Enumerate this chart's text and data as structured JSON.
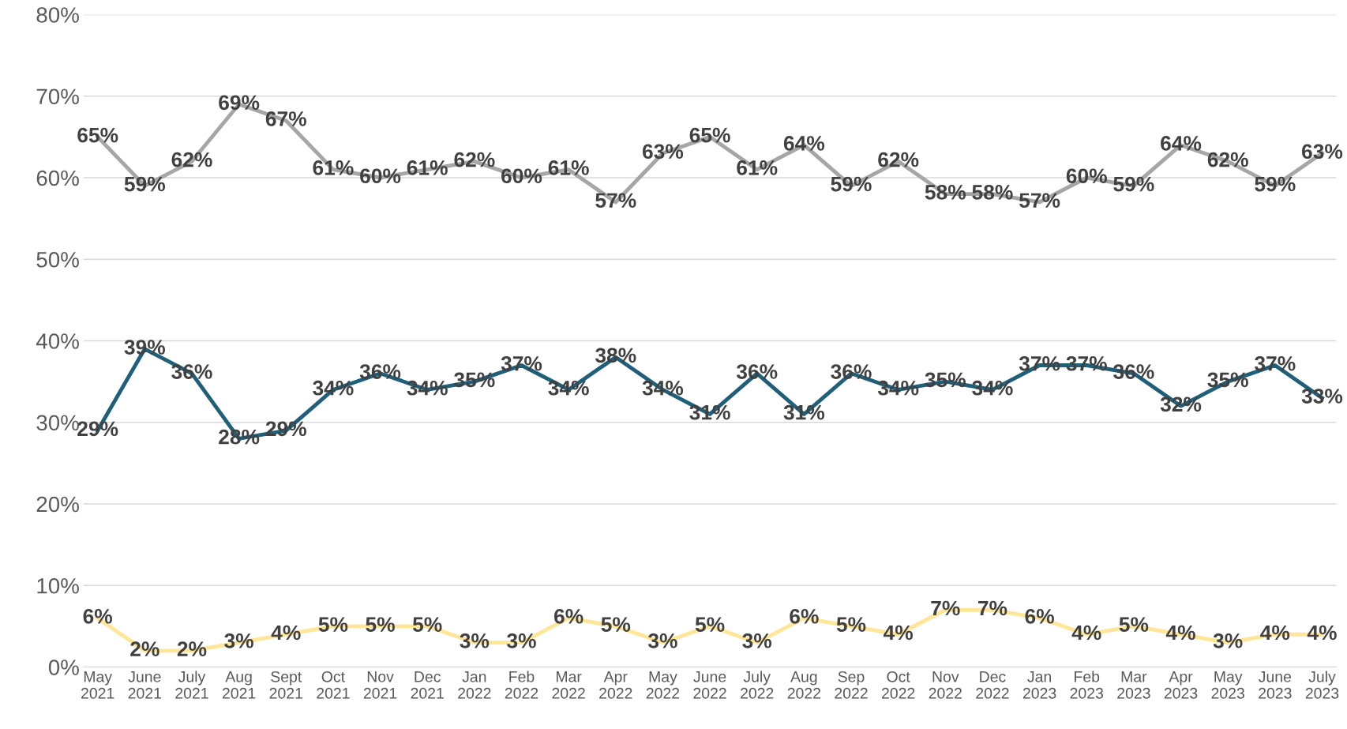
{
  "chart_data": {
    "type": "line",
    "categories": [
      "May\n2021",
      "June\n2021",
      "July\n2021",
      "Aug\n2021",
      "Sept\n2021",
      "Oct\n2021",
      "Nov\n2021",
      "Dec\n2021",
      "Jan\n2022",
      "Feb\n2022",
      "Mar\n2022",
      "Apr\n2022",
      "May\n2022",
      "June\n2022",
      "July\n2022",
      "Aug\n2022",
      "Sep\n2022",
      "Oct\n2022",
      "Nov\n2022",
      "Dec\n2022",
      "Jan\n2023",
      "Feb\n2023",
      "Mar\n2023",
      "Apr\n2023",
      "May\n2023",
      "June\n2023",
      "July\n2023"
    ],
    "series": [
      {
        "color": "#a6a6a6",
        "values": [
          65,
          59,
          62,
          69,
          67,
          61,
          60,
          61,
          62,
          60,
          61,
          57,
          63,
          65,
          61,
          64,
          59,
          62,
          58,
          58,
          57,
          60,
          59,
          64,
          62,
          59,
          63
        ],
        "value_labels": [
          "65%",
          "59%",
          "62%",
          "69%",
          "67%",
          "61%",
          "60%",
          "61%",
          "62%",
          "60%",
          "61%",
          "57%",
          "63%",
          "65%",
          "61%",
          "64%",
          "59%",
          "62%",
          "58%",
          "58%",
          "57%",
          "60%",
          "59%",
          "64%",
          "62%",
          "59%",
          "63%"
        ]
      },
      {
        "color": "#1f5f7a",
        "values": [
          29,
          39,
          36,
          28,
          29,
          34,
          36,
          34,
          35,
          37,
          34,
          38,
          34,
          31,
          36,
          31,
          36,
          34,
          35,
          34,
          37,
          37,
          36,
          32,
          35,
          37,
          33
        ],
        "value_labels": [
          "29%",
          "39%",
          "36%",
          "28%",
          "29%",
          "34%",
          "36%",
          "34%",
          "35%",
          "37%",
          "34%",
          "38%",
          "34%",
          "31%",
          "36%",
          "31%",
          "36%",
          "34%",
          "35%",
          "34%",
          "37%",
          "37%",
          "36%",
          "32%",
          "35%",
          "37%",
          "33%"
        ]
      },
      {
        "color": "#ffe699",
        "values": [
          6,
          2,
          2,
          3,
          4,
          5,
          5,
          5,
          3,
          3,
          6,
          5,
          3,
          5,
          3,
          6,
          5,
          4,
          7,
          7,
          6,
          4,
          5,
          4,
          3,
          4,
          4
        ],
        "value_labels": [
          "6%",
          "2%",
          "2%",
          "3%",
          "4%",
          "5%",
          "5%",
          "5%",
          "3%",
          "3%",
          "6%",
          "5%",
          "3%",
          "5%",
          "3%",
          "6%",
          "5%",
          "4%",
          "7%",
          "7%",
          "6%",
          "4%",
          "5%",
          "4%",
          "3%",
          "4%",
          "4%"
        ]
      }
    ],
    "ylim": [
      0,
      80
    ],
    "yticks": [
      {
        "value": 0,
        "label": "0%"
      },
      {
        "value": 10,
        "label": "10%"
      },
      {
        "value": 20,
        "label": "20%"
      },
      {
        "value": 30,
        "label": "30%"
      },
      {
        "value": 40,
        "label": "40%"
      },
      {
        "value": 50,
        "label": "50%"
      },
      {
        "value": 60,
        "label": "60%"
      },
      {
        "value": 70,
        "label": "70%"
      },
      {
        "value": 80,
        "label": "80%"
      }
    ],
    "grid": "y",
    "marker": "none",
    "line_style": "solid"
  }
}
